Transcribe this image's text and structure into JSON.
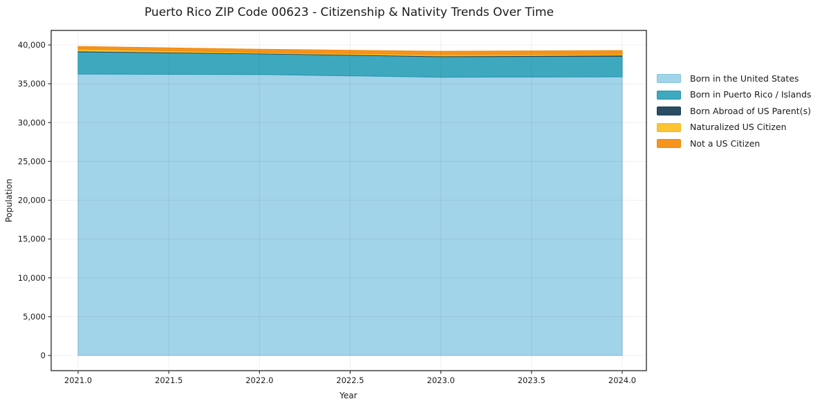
{
  "title": "Puerto Rico ZIP Code 00623 - Citizenship & Nativity Trends Over Time",
  "chart_data": {
    "type": "area",
    "stacked": true,
    "title": "Puerto Rico ZIP Code 00623 - Citizenship & Nativity Trends Over Time",
    "xlabel": "Year",
    "ylabel": "Population",
    "x": [
      2021,
      2022,
      2023,
      2024
    ],
    "series": [
      {
        "name": "Born in the United States",
        "values": [
          36250,
          36200,
          35850,
          35900
        ],
        "color": "#a1d3e9",
        "edge": "#85c3de"
      },
      {
        "name": "Born in Puerto Rico / Islands",
        "values": [
          2860,
          2670,
          2640,
          2650
        ],
        "color": "#3ea8be",
        "edge": "#2596b0"
      },
      {
        "name": "Born Abroad of US Parent(s)",
        "values": [
          100,
          60,
          90,
          130
        ],
        "color": "#2b4d63",
        "edge": "#223f53"
      },
      {
        "name": "Naturalized US Citizen",
        "values": [
          260,
          120,
          180,
          140
        ],
        "color": "#fcc333",
        "edge": "#f6b81a"
      },
      {
        "name": "Not a US Citizen",
        "values": [
          330,
          390,
          420,
          450
        ],
        "color": "#f7941e",
        "edge": "#ee8a0d"
      }
    ],
    "x_ticks": [
      2021.0,
      2021.5,
      2022.0,
      2022.5,
      2023.0,
      2023.5,
      2024.0
    ],
    "x_tick_labels": [
      "2021.0",
      "2021.5",
      "2022.0",
      "2022.5",
      "2023.0",
      "2023.5",
      "2024.0"
    ],
    "y_ticks": [
      0,
      5000,
      10000,
      15000,
      20000,
      25000,
      30000,
      35000,
      40000
    ],
    "y_tick_labels": [
      "0",
      "5,000",
      "10,000",
      "15,000",
      "20,000",
      "25,000",
      "30,000",
      "35,000",
      "40,000"
    ],
    "xlim": [
      2020.85,
      2024.13
    ],
    "ylim": [
      -1960,
      41870
    ],
    "grid": true,
    "legend_position": "right-outside",
    "grid_color": "#e9e9e9",
    "spine_color": "#333333",
    "text_color": "#1a1a1a"
  }
}
